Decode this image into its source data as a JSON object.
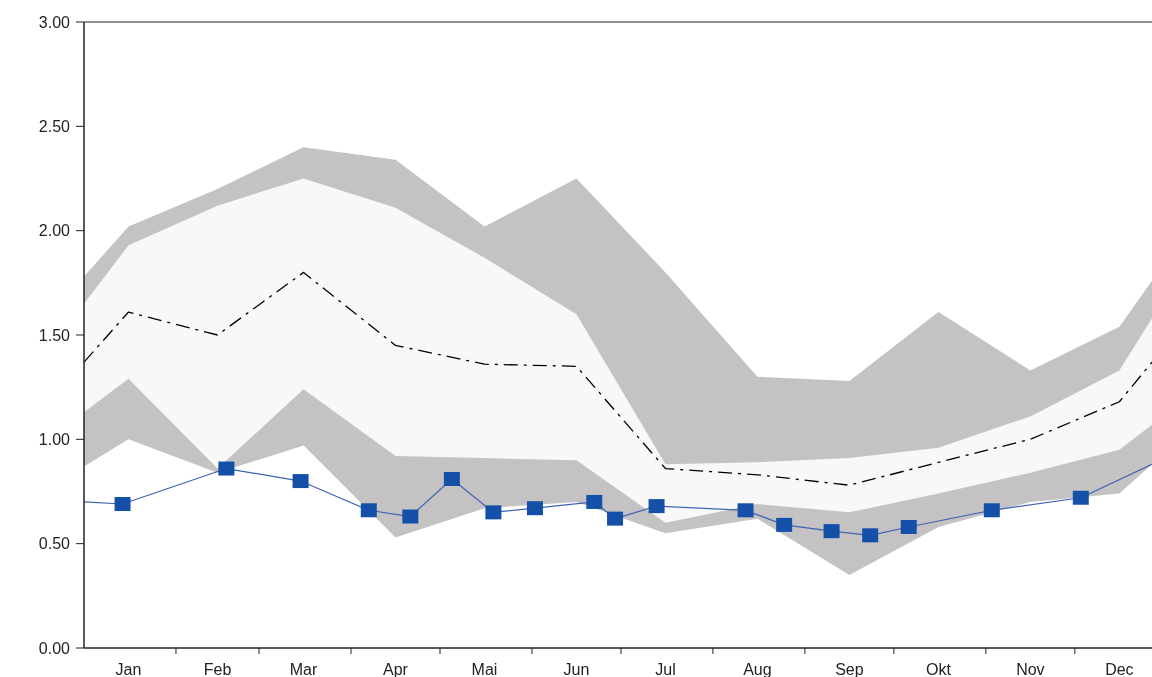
{
  "chart_data": {
    "type": "line",
    "x": [
      "--01-01",
      "--01-16",
      "--02-15",
      "--03-16",
      "--04-16",
      "--05-16",
      "--06-16",
      "--07-16",
      "--08-16",
      "--09-16",
      "--10-16",
      "--11-16",
      "--12-16",
      "--12-27"
    ],
    "xlim": [
      "--01-01",
      "--12-27"
    ],
    "xticks": [
      {
        "value": "--01-16",
        "label": "Jan"
      },
      {
        "value": "--02-01",
        "label": null
      },
      {
        "value": "--02-15",
        "label": "Feb"
      },
      {
        "value": "--03-01",
        "label": null
      },
      {
        "value": "--03-16",
        "label": "Mar"
      },
      {
        "value": "--04-01",
        "label": null
      },
      {
        "value": "--04-16",
        "label": "Apr"
      },
      {
        "value": "--05-01",
        "label": null
      },
      {
        "value": "--05-16",
        "label": "Mai"
      },
      {
        "value": "--06-01",
        "label": null
      },
      {
        "value": "--06-16",
        "label": "Jun"
      },
      {
        "value": "--07-01",
        "label": null
      },
      {
        "value": "--07-16",
        "label": "Jul"
      },
      {
        "value": "--08-01",
        "label": null
      },
      {
        "value": "--08-16",
        "label": "Aug"
      },
      {
        "value": "--09-01",
        "label": null
      },
      {
        "value": "--09-16",
        "label": "Sep"
      },
      {
        "value": "--10-01",
        "label": null
      },
      {
        "value": "--10-16",
        "label": "Okt"
      },
      {
        "value": "--11-01",
        "label": null
      },
      {
        "value": "--11-16",
        "label": "Nov"
      },
      {
        "value": "--12-01",
        "label": null
      },
      {
        "value": "--12-16",
        "label": "Dec"
      }
    ],
    "ylim": [
      0,
      3
    ],
    "yticks": [
      {
        "value": 0,
        "label": "0.00"
      },
      {
        "value": 0.5,
        "label": "0.50"
      },
      {
        "value": 1,
        "label": "1.00"
      },
      {
        "value": 1.5,
        "label": "1.50"
      },
      {
        "value": 2,
        "label": "2.00"
      },
      {
        "value": 2.5,
        "label": "2.50"
      },
      {
        "value": 3,
        "label": "3.00"
      }
    ],
    "grid": false,
    "series": [
      {
        "type": "area",
        "color": "#c4c2c2",
        "values": [
          null,
          null,
          null,
          null,
          null,
          null,
          null,
          null,
          null,
          null,
          null,
          null,
          null,
          null
        ],
        "upper": [
          1.78,
          2.02,
          2.2,
          2.4,
          2.34,
          2.02,
          2.25,
          1.8,
          1.3,
          1.28,
          1.61,
          1.33,
          1.54,
          1.76
        ],
        "lower": [
          0.87,
          1.0,
          0.84,
          0.97,
          0.53,
          0.67,
          0.7,
          0.55,
          0.62,
          0.35,
          0.58,
          0.7,
          0.74,
          0.88
        ]
      },
      {
        "type": "area",
        "color": "#f9f8f8",
        "values": [
          null,
          null,
          null,
          null,
          null,
          null,
          null,
          null,
          null,
          null,
          null,
          null,
          null,
          null
        ],
        "upper": [
          1.65,
          1.93,
          2.12,
          2.25,
          2.11,
          1.87,
          1.6,
          0.88,
          0.89,
          0.91,
          0.96,
          1.11,
          1.33,
          1.58
        ],
        "lower": [
          1.13,
          1.29,
          0.86,
          1.24,
          0.92,
          0.91,
          0.9,
          0.6,
          0.69,
          0.65,
          0.74,
          0.84,
          0.95,
          1.07
        ]
      },
      {
        "color": "#000000",
        "line_style": "dashed",
        "marker": "none",
        "values": [
          1.37,
          1.61,
          1.5,
          1.8,
          1.45,
          1.36,
          1.35,
          0.86,
          0.83,
          0.78,
          0.89,
          1.0,
          1.18,
          1.37
        ]
      },
      {
        "color": "#3f63b5",
        "marker": "square",
        "x": [
          "--01-01",
          "--01-14",
          "--02-18",
          "--03-15",
          "--04-07",
          "--04-21",
          "--05-05",
          "--05-19",
          "--06-02",
          "--06-22",
          "--06-29",
          "--07-13",
          "--08-12",
          "--08-25",
          "--09-10",
          "--09-23",
          "--10-06",
          "--11-03",
          "--12-03",
          "--12-27"
        ],
        "values": [
          0.7,
          0.69,
          0.86,
          0.8,
          0.66,
          0.63,
          0.81,
          0.65,
          0.67,
          0.7,
          0.62,
          0.68,
          0.66,
          0.59,
          0.56,
          0.54,
          0.58,
          0.66,
          0.72,
          0.88
        ]
      }
    ]
  }
}
